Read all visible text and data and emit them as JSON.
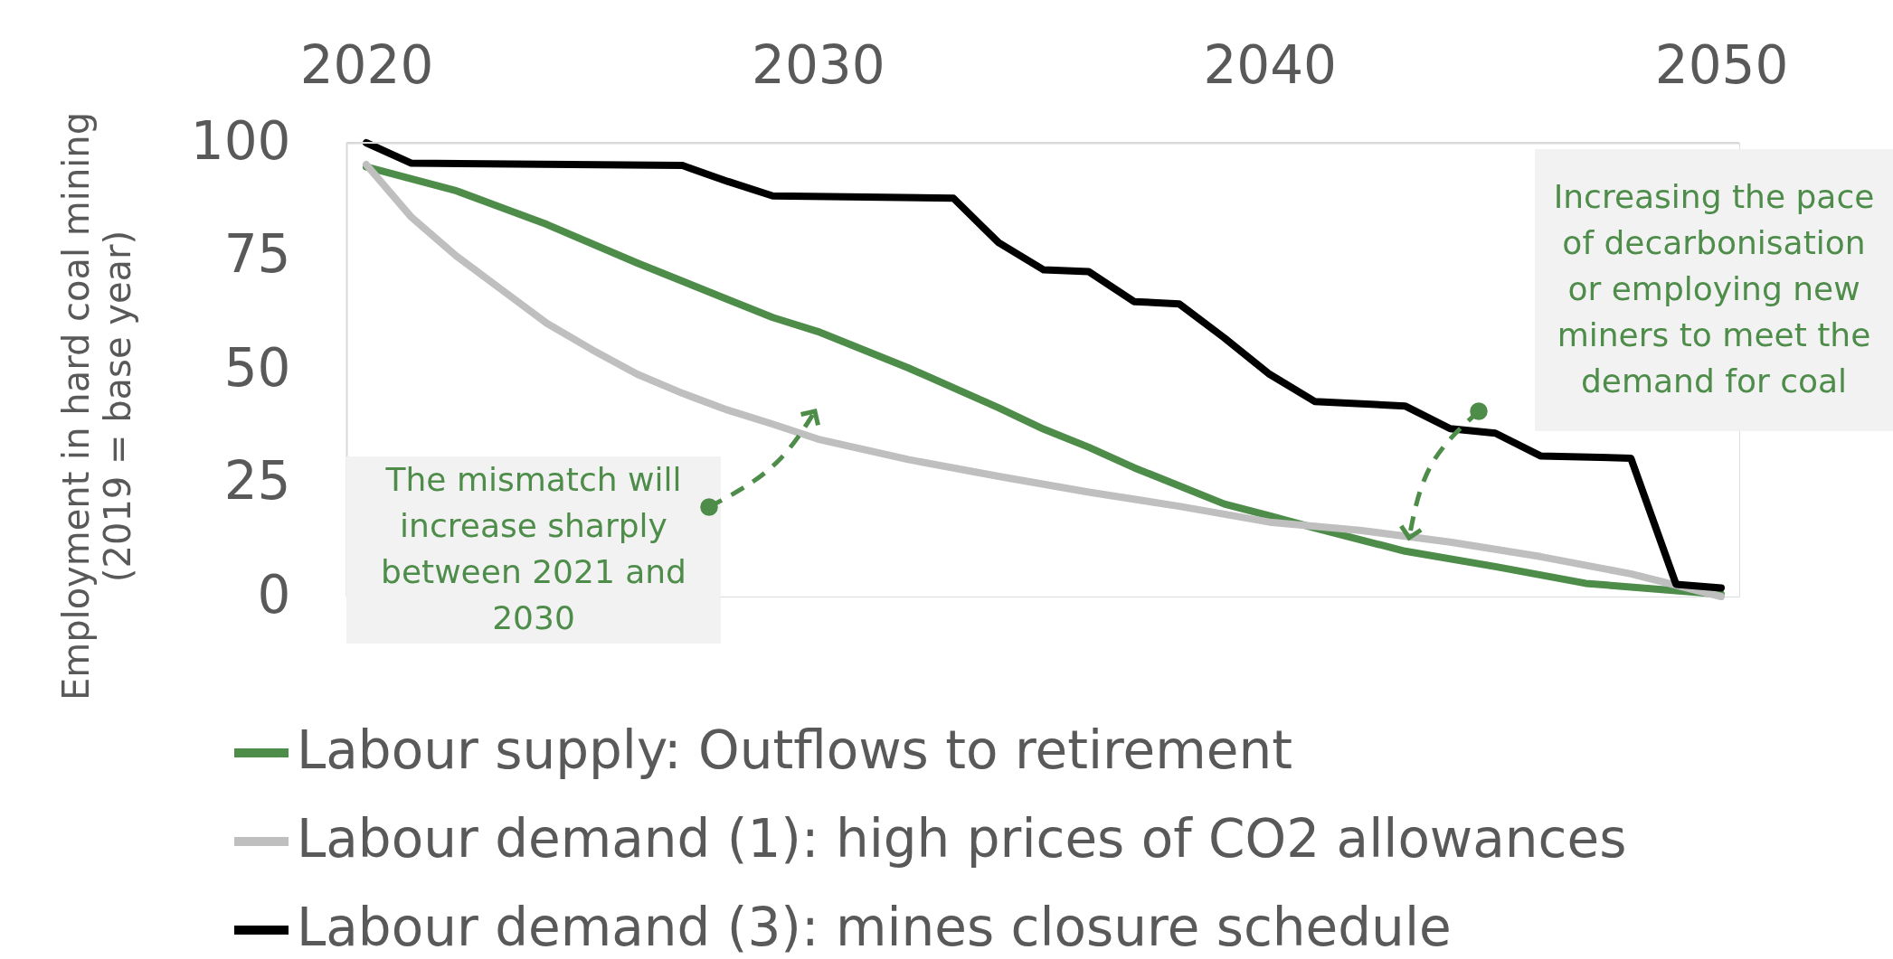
{
  "chart_data": {
    "type": "line",
    "ylabel": "Employment in hard coal mining\n(2019 = base year)",
    "xlim": [
      2019.56,
      2050.4
    ],
    "xticks": [
      2020,
      2030,
      2040,
      2050
    ],
    "ylim": [
      0,
      100
    ],
    "yticks": [
      0,
      25,
      50,
      75,
      100
    ],
    "grid": false,
    "legend": "bottom",
    "line_style": "solid",
    "marker": "none",
    "series": [
      {
        "name": "Labour supply: Outflows to retirement",
        "color": "#4e8c4a",
        "x": [
          2020,
          2022,
          2023,
          2024,
          2026,
          2028,
          2029,
          2030,
          2032,
          2034,
          2035,
          2036,
          2037,
          2038,
          2039,
          2040,
          2041,
          2043,
          2045,
          2047,
          2050
        ],
        "values": [
          94.7,
          89.4,
          85.7,
          82,
          73.5,
          65.5,
          61.5,
          58.4,
          50.4,
          41.6,
          36.9,
          32.9,
          28.4,
          24.4,
          20.4,
          17.8,
          15.1,
          10,
          6.6,
          2.9,
          0.5
        ]
      },
      {
        "name": "Labour demand (1): high prices of CO2 allowances",
        "color": "#bfbfbf",
        "x": [
          2020,
          2021,
          2022,
          2023,
          2024,
          2025,
          2026,
          2027,
          2028,
          2029,
          2030,
          2032,
          2034,
          2036,
          2038,
          2040,
          2042,
          2044,
          2046,
          2048,
          2050
        ],
        "values": [
          95.2,
          83.6,
          75,
          67.6,
          60.2,
          54.4,
          49,
          44.8,
          41.1,
          38,
          34.7,
          30.2,
          26.5,
          23,
          19.9,
          16.4,
          14.6,
          12,
          8.8,
          5,
          0
        ]
      },
      {
        "name": "Labour demand (3): mines closure schedule",
        "color": "#000000",
        "x": [
          2020,
          2021,
          2027,
          2028,
          2029,
          2033,
          2034,
          2035,
          2036,
          2037,
          2038,
          2039,
          2040,
          2041,
          2043,
          2044,
          2045,
          2046,
          2048,
          2049,
          2050
        ],
        "values": [
          100,
          95.5,
          95,
          91.5,
          88.3,
          87.8,
          78,
          72,
          71.6,
          65,
          64.5,
          57,
          49,
          43,
          42,
          37,
          36,
          31,
          30.5,
          2.7,
          1.9
        ]
      }
    ],
    "annotations": [
      "The mismatch will\nincrease sharply\nbetween 2021 and\n2030",
      "Increasing the pace\nof decarbonisation\nor employing new\nminers to meet the\ndemand for coal"
    ]
  }
}
